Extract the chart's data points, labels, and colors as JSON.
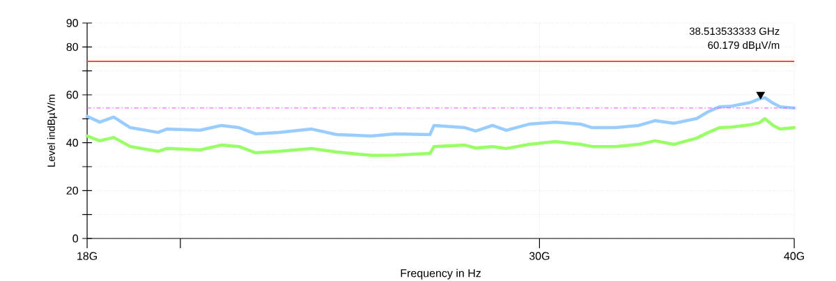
{
  "chart_data": {
    "type": "line",
    "xlabel": "Frequency in Hz",
    "ylabel": "Level indBµV/m",
    "log": "x",
    "grid": true,
    "xlim": [
      18,
      40
    ],
    "ylim": [
      0,
      90
    ],
    "xticks": [
      {
        "value": 18,
        "label": "18G"
      },
      {
        "value": 20,
        "label": null
      },
      {
        "value": 30,
        "label": "30G"
      },
      {
        "value": 40,
        "label": "40G"
      }
    ],
    "yticks": [
      0,
      {
        "value": 10,
        "label": null
      },
      20,
      {
        "value": 30,
        "label": null
      },
      40,
      {
        "value": 50,
        "label": null
      },
      60,
      {
        "value": 70,
        "label": null
      },
      80,
      90
    ],
    "x": [
      18.0,
      18.26,
      18.55,
      18.9,
      19.5,
      19.7,
      20.45,
      20.94,
      21.37,
      21.77,
      22.35,
      23.19,
      23.86,
      24.81,
      25.49,
      26.51,
      26.63,
      27.57,
      27.92,
      28.45,
      28.9,
      29.66,
      30.54,
      31.42,
      31.84,
      32.68,
      33.56,
      34.18,
      34.91,
      35.83,
      36.31,
      36.77,
      37.27,
      38.07,
      38.46,
      38.7,
      39.07,
      39.38,
      40.0
    ],
    "series": [
      {
        "color": "#99ccff",
        "values": [
          51.0,
          48.6,
          50.7,
          46.3,
          44.3,
          45.7,
          45.2,
          47.2,
          46.3,
          43.7,
          44.3,
          45.7,
          43.4,
          42.8,
          43.7,
          43.4,
          47.2,
          46.3,
          44.9,
          47.2,
          45.2,
          47.8,
          48.6,
          47.8,
          46.3,
          46.3,
          47.2,
          49.2,
          48.1,
          50.1,
          53.0,
          55.0,
          55.3,
          56.8,
          58.3,
          58.8,
          56.5,
          55.0,
          54.5
        ]
      },
      {
        "color": "#99ff66",
        "values": [
          42.8,
          40.8,
          42.2,
          38.4,
          36.4,
          37.6,
          37.0,
          39.0,
          38.4,
          35.8,
          36.4,
          37.6,
          36.1,
          34.7,
          34.8,
          35.5,
          38.4,
          39.0,
          37.8,
          38.4,
          37.6,
          39.3,
          40.5,
          39.3,
          38.4,
          38.4,
          39.3,
          40.8,
          39.3,
          41.9,
          44.3,
          46.3,
          46.5,
          47.5,
          48.3,
          50.1,
          47.2,
          45.7,
          46.3
        ]
      },
      {
        "type": "scatter",
        "marker": "triangle",
        "color": "#000000",
        "x": [
          38.513533333
        ],
        "values": [
          60.179
        ]
      }
    ],
    "ref_lines": [
      {
        "axis": "y",
        "value": 74,
        "color": "#ff4444",
        "line_style": "solid"
      },
      {
        "axis": "y",
        "value": 54.5,
        "color": "#ff44ff",
        "line_style": "dashdot"
      }
    ],
    "annotations": [
      "38.513533333 GHz",
      "60.179 dBµV/m"
    ]
  }
}
